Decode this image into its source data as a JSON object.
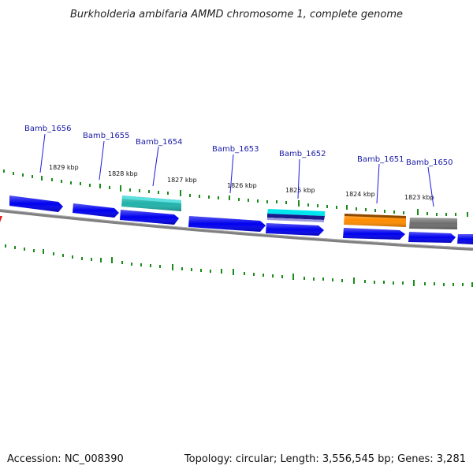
{
  "title": "Burkholderia ambifaria AMMD chromosome 1, complete genome",
  "footer": {
    "accession": "Accession: NC_008390",
    "summary": "Topology: circular; Length: 3,556,545 bp; Genes: 3,281"
  },
  "colors": {
    "backbone": "#808080",
    "tick": "#1a8c1a",
    "gene_label": "#1a1aa8",
    "forward_gene": "#0000ee",
    "teal_gene": "#20b2aa",
    "cyan_gene": "#00e5ee",
    "orange_gene": "#ff8c00",
    "gray_gene": "#6e6e6e"
  },
  "scale_labels": [
    "1829 kbp",
    "1828 kbp",
    "1827 kbp",
    "1826 kbp",
    "1825 kbp",
    "1824 kbp",
    "1823 kbp"
  ],
  "gene_labels": [
    "Bamb_1656",
    "Bamb_1655",
    "Bamb_1654",
    "Bamb_1653",
    "Bamb_1652",
    "Bamb_1651",
    "Bamb_1650"
  ]
}
